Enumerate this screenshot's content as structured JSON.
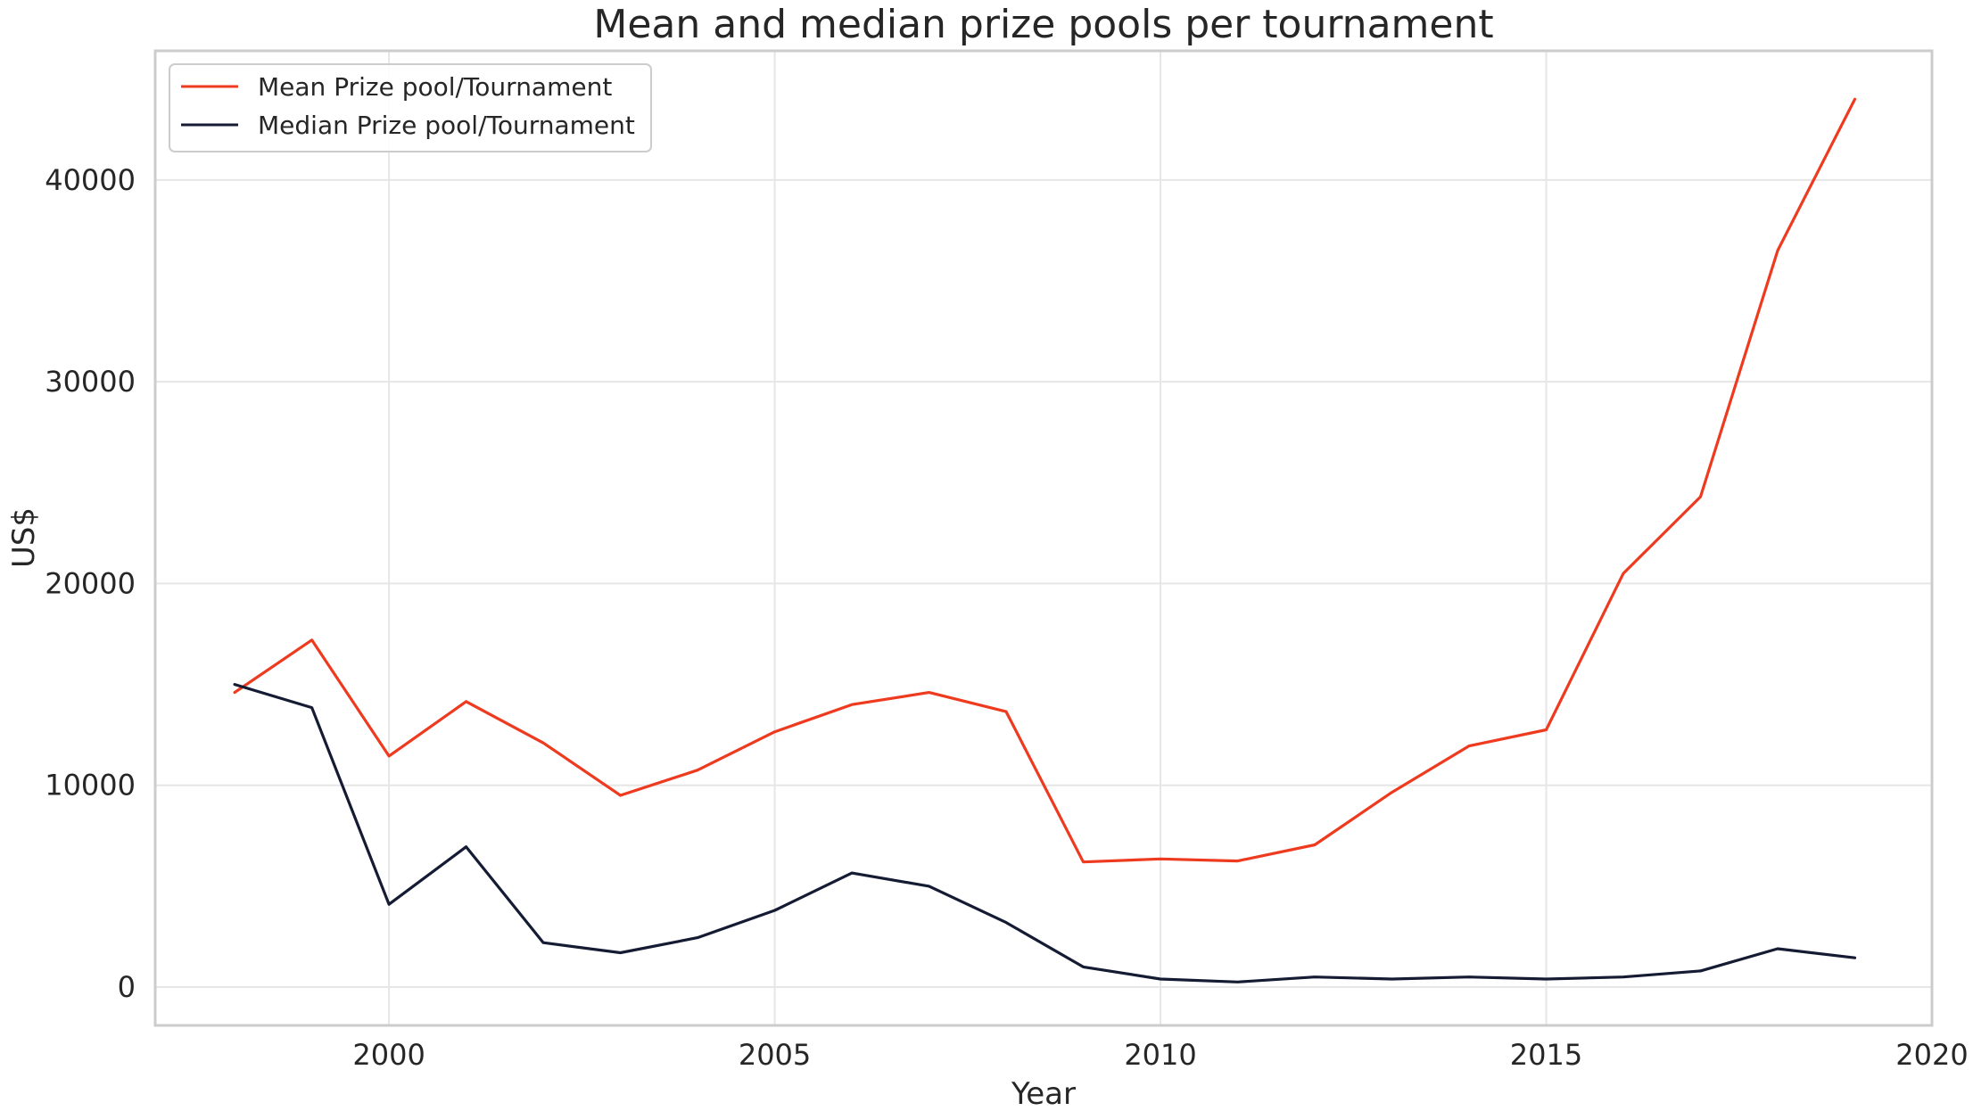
{
  "chart_data": {
    "type": "line",
    "title": "Mean and median prize pools per tournament",
    "xlabel": "Year",
    "ylabel": "US$",
    "xlim": [
      1996.97,
      2020
    ],
    "ylim": [
      -1900,
      46400
    ],
    "x_ticks": [
      2000,
      2005,
      2010,
      2015,
      2020
    ],
    "y_ticks": [
      0,
      10000,
      20000,
      30000,
      40000
    ],
    "grid": true,
    "legend_position": "top-left",
    "x": [
      1998,
      1999,
      2000,
      2001,
      2002,
      2003,
      2004,
      2005,
      2006,
      2007,
      2008,
      2009,
      2010,
      2011,
      2012,
      2013,
      2014,
      2015,
      2016,
      2017,
      2018,
      2019
    ],
    "series": [
      {
        "name": "Mean Prize pool/Tournament",
        "color": "#ee3a1f",
        "values": [
          14600,
          17200,
          11450,
          14150,
          12100,
          9500,
          10750,
          12650,
          14000,
          14600,
          13650,
          6200,
          6350,
          6250,
          7050,
          9650,
          11950,
          12750,
          20500,
          24300,
          36500,
          44000
        ]
      },
      {
        "name": "Median Prize pool/Tournament",
        "color": "#141b33",
        "values": [
          15000,
          13850,
          4100,
          6950,
          2200,
          1700,
          2450,
          3800,
          5650,
          5000,
          3200,
          1000,
          400,
          250,
          500,
          400,
          500,
          400,
          500,
          800,
          1900,
          1450
        ]
      }
    ]
  }
}
